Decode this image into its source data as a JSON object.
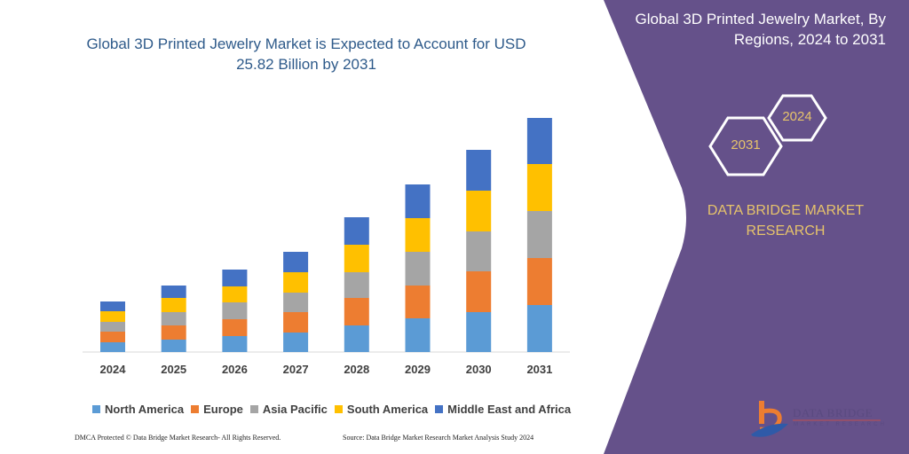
{
  "title": "Global 3D Printed Jewelry Market is Expected to Account for USD 25.82 Billion by 2031",
  "side_panel": {
    "title": "Global 3D Printed Jewelry Market, By Regions, 2024 to 2031",
    "hex_start": "2024",
    "hex_end": "2031",
    "brand": "DATA BRIDGE MARKET RESEARCH",
    "logo_text": "DATA BRIDGE",
    "logo_sub": "MARKET RESEARCH",
    "color": "#65518a"
  },
  "footer": {
    "left": "DMCA Protected © Data Bridge Market Research-  All Rights Reserved.",
    "right": "Source: Data Bridge Market Research  Market Analysis Study 2024"
  },
  "chart_data": {
    "type": "bar",
    "stacked": true,
    "title": "Global 3D Printed Jewelry Market is Expected to Account for USD 25.82 Billion by 2031",
    "categories": [
      "2024",
      "2025",
      "2026",
      "2027",
      "2028",
      "2029",
      "2030",
      "2031"
    ],
    "series": [
      {
        "name": "North America",
        "color": "#5b9bd5",
        "values": [
          11,
          14,
          18,
          22,
          30,
          38,
          45,
          53
        ]
      },
      {
        "name": "Europe",
        "color": "#ed7d31",
        "values": [
          12,
          16,
          19,
          23,
          31,
          37,
          46,
          53
        ]
      },
      {
        "name": "Asia Pacific",
        "color": "#a5a5a5",
        "values": [
          11,
          15,
          19,
          22,
          29,
          38,
          45,
          53
        ]
      },
      {
        "name": "South America",
        "color": "#ffc000",
        "values": [
          12,
          16,
          18,
          23,
          31,
          38,
          46,
          53
        ]
      },
      {
        "name": "Middle East and Africa",
        "color": "#4472c4",
        "values": [
          11,
          14,
          19,
          23,
          31,
          38,
          46,
          52
        ]
      }
    ],
    "legend": "bottom",
    "grid": false,
    "y_axis_shown": false
  }
}
